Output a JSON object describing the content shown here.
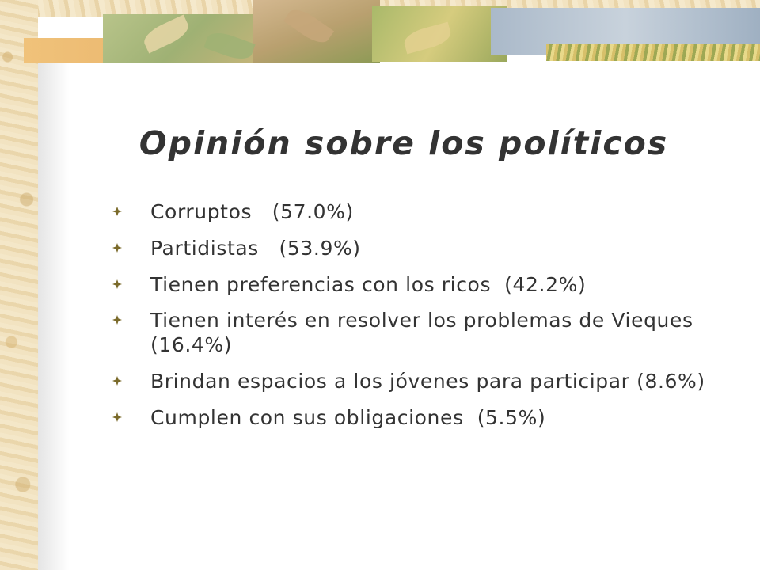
{
  "slide": {
    "title": "Opinión sobre los políticos",
    "bullet_icon": "four-petal-diamond-icon",
    "accent_color": "#7a6a2a",
    "text_color": "#333333",
    "items": [
      "Corruptos   (57.0%)",
      "Partidistas   (53.9%)",
      "Tienen preferencias con los ricos  (42.2%)",
      "Tienen interés en resolver los problemas de Vieques (16.4%)",
      "Brindan espacios a los jóvenes para participar (8.6%)",
      "Cumplen con sus obligaciones  (5.5%)"
    ]
  }
}
